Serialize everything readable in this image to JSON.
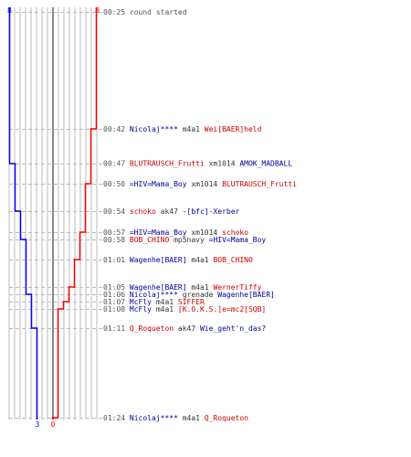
{
  "chart_data": {
    "type": "line",
    "teams": {
      "blue": {
        "color": "#0000ff",
        "start": 8,
        "end": 3
      },
      "red": {
        "color": "#ff0000",
        "start": 8,
        "end": 0
      }
    },
    "colors": {
      "blue": "#000099",
      "red": "#cc0000",
      "neutral": "#333333",
      "time": "#555555",
      "grid": "#bbbbbb",
      "guide": "#888888"
    },
    "events": [
      {
        "time": "00:25",
        "parts": [
          {
            "t": "round started",
            "c": "time"
          }
        ]
      },
      {
        "time": "00:42",
        "parts": [
          {
            "t": "Nicolaj****",
            "c": "blue"
          },
          {
            "t": " m4a1 ",
            "c": "neutral"
          },
          {
            "t": "Wei[BAER]held",
            "c": "red"
          }
        ]
      },
      {
        "time": "00:47",
        "parts": [
          {
            "t": "BLUTRAUSCH_Frutti",
            "c": "red"
          },
          {
            "t": " xm1014 ",
            "c": "neutral"
          },
          {
            "t": "AMOK_MADBALL",
            "c": "blue"
          }
        ]
      },
      {
        "time": "00:50",
        "parts": [
          {
            "t": "=HIV=Mama_Boy",
            "c": "blue"
          },
          {
            "t": " xm1014 ",
            "c": "neutral"
          },
          {
            "t": "BLUTRAUSCH_Frutti",
            "c": "red"
          }
        ]
      },
      {
        "time": "00:54",
        "parts": [
          {
            "t": "schoko",
            "c": "red"
          },
          {
            "t": " ak47 ",
            "c": "neutral"
          },
          {
            "t": "-[bfc]-Xerber",
            "c": "blue"
          }
        ]
      },
      {
        "time": "00:57",
        "parts": [
          {
            "t": "=HIV=Mama_Boy",
            "c": "blue"
          },
          {
            "t": " xm1014 ",
            "c": "neutral"
          },
          {
            "t": "schoko",
            "c": "red"
          }
        ]
      },
      {
        "time": "00:58",
        "parts": [
          {
            "t": "BOB_CHINO",
            "c": "red"
          },
          {
            "t": " mp5navy ",
            "c": "neutral"
          },
          {
            "t": "=HIV=Mama_Boy",
            "c": "blue"
          }
        ]
      },
      {
        "time": "01:01",
        "parts": [
          {
            "t": "Wagenhe[BAER]",
            "c": "blue"
          },
          {
            "t": " m4a1 ",
            "c": "neutral"
          },
          {
            "t": "BOB_CHINO",
            "c": "red"
          }
        ]
      },
      {
        "time": "01:05",
        "parts": [
          {
            "t": "Wagenhe[BAER]",
            "c": "blue"
          },
          {
            "t": " m4a1 ",
            "c": "neutral"
          },
          {
            "t": "WernerTiffy",
            "c": "red"
          }
        ]
      },
      {
        "time": "01:06",
        "parts": [
          {
            "t": "Nicolaj****",
            "c": "blue"
          },
          {
            "t": " grenade ",
            "c": "neutral"
          },
          {
            "t": "Wagenhe[BAER]",
            "c": "blue"
          }
        ]
      },
      {
        "time": "01:07",
        "parts": [
          {
            "t": "McFly",
            "c": "blue"
          },
          {
            "t": " m4a1 ",
            "c": "neutral"
          },
          {
            "t": "SIFFER",
            "c": "red"
          }
        ]
      },
      {
        "time": "01:08",
        "parts": [
          {
            "t": "McFly",
            "c": "blue"
          },
          {
            "t": " m4a1 ",
            "c": "neutral"
          },
          {
            "t": "[K.O.K.S.]e=mc2[SQB]",
            "c": "red"
          }
        ]
      },
      {
        "time": "01:11",
        "parts": [
          {
            "t": "Q_Roqueton",
            "c": "red"
          },
          {
            "t": " ak47 ",
            "c": "neutral"
          },
          {
            "t": "Wie_geht'n_das?",
            "c": "blue"
          }
        ]
      },
      {
        "time": "01:24",
        "parts": [
          {
            "t": "Nicolaj****",
            "c": "blue"
          },
          {
            "t": " m4a1 ",
            "c": "neutral"
          },
          {
            "t": "Q_Roqueton",
            "c": "red"
          }
        ]
      }
    ]
  }
}
